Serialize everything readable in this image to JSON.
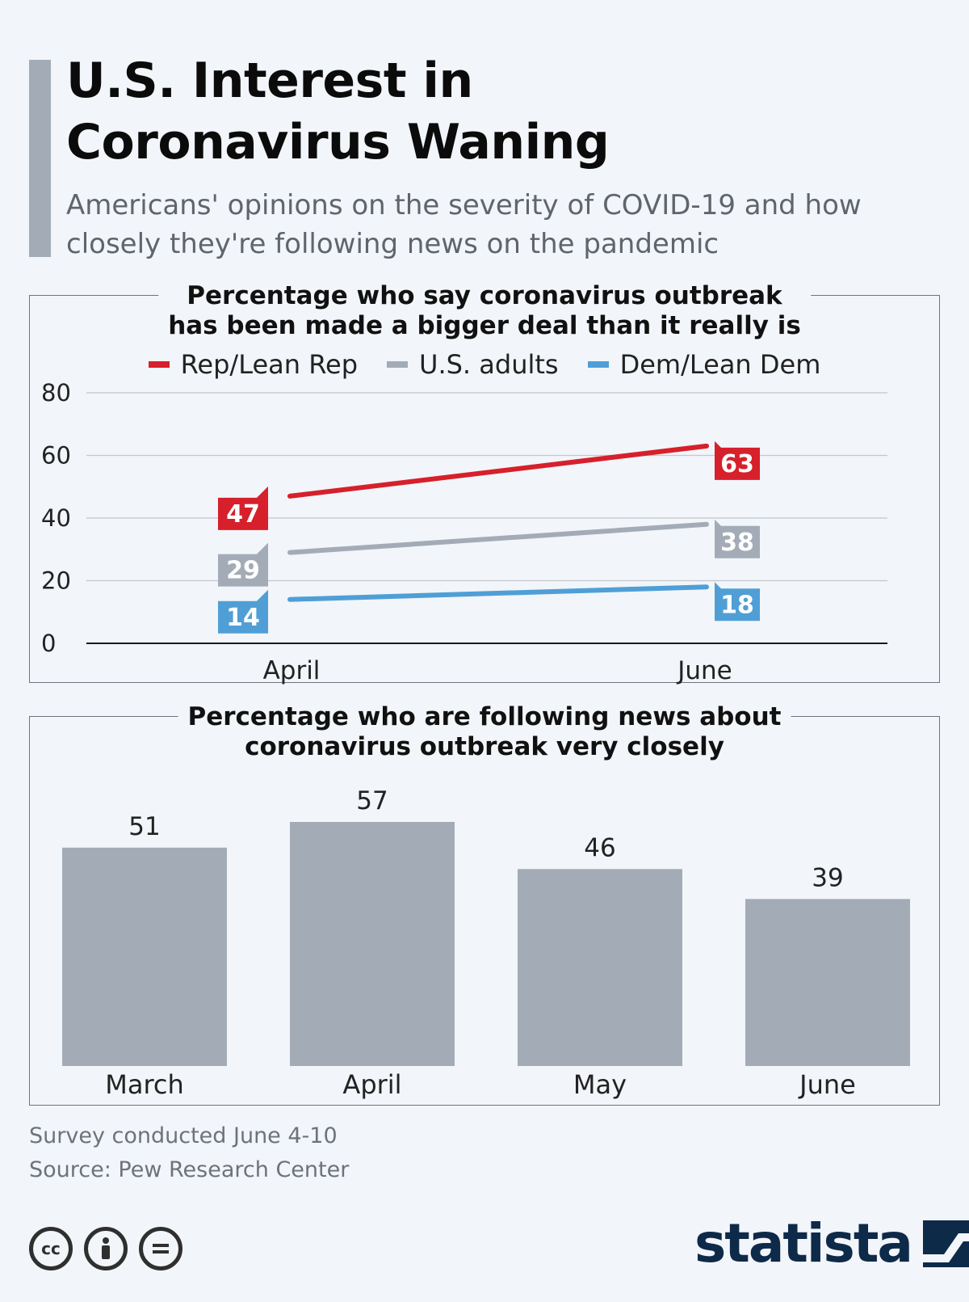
{
  "header": {
    "title_line1": "U.S. Interest in",
    "title_line2": "Coronavirus Waning",
    "subtitle": "Americans' opinions on the severity of COVID-19 and how closely they're following news on the pandemic"
  },
  "chart_data": [
    {
      "type": "line",
      "title_line1": "Percentage who say coronavirus outbreak",
      "title_line2": "has been made a bigger deal than it really is",
      "x": [
        "April",
        "June"
      ],
      "ylim": [
        0,
        80
      ],
      "yticks": [
        0,
        20,
        40,
        60,
        80
      ],
      "series": [
        {
          "name": "Rep/Lean Rep",
          "values": [
            47,
            63
          ],
          "color": "#d6202b"
        },
        {
          "name": "U.S. adults",
          "values": [
            29,
            38
          ],
          "color": "#a3acb6"
        },
        {
          "name": "Dem/Lean Dem",
          "values": [
            14,
            18
          ],
          "color": "#4f9fd6"
        }
      ],
      "legend": "top"
    },
    {
      "type": "bar",
      "title_line1": "Percentage who are following news about",
      "title_line2": "coronavirus outbreak very closely",
      "categories": [
        "March",
        "April",
        "May",
        "June"
      ],
      "values": [
        51,
        57,
        46,
        39
      ],
      "ylim": [
        0,
        57
      ],
      "color": "#a3acb6"
    }
  ],
  "footer": {
    "note": "Survey conducted June 4-10",
    "source": "Source: Pew Research Center",
    "license_icons": [
      "cc-icon",
      "attribution-icon",
      "no-derivatives-icon"
    ],
    "brand": "statista"
  }
}
